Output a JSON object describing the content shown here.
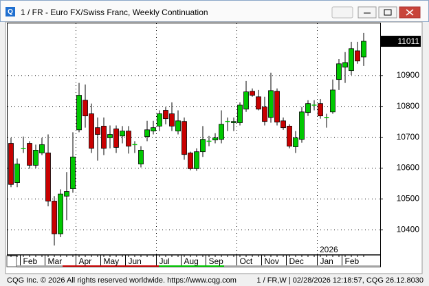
{
  "window": {
    "title": "1 / FR - Euro FX/Swiss Franc, Weekly Continuation"
  },
  "footer": {
    "copyright": "CQG Inc. © 2026 All rights reserved worldwide. https://www.cqg.com",
    "status": "1 / FR,W | 02/28/2026 12:18:57, CQG 26.12.8030"
  },
  "chart_data": {
    "type": "candlestick",
    "categories": [
      null,
      null,
      "Feb",
      null,
      null,
      null,
      "Mar",
      null,
      null,
      null,
      null,
      "Apr",
      null,
      null,
      null,
      "May",
      null,
      null,
      null,
      "Jun",
      null,
      null,
      null,
      null,
      "Jul",
      null,
      null,
      null,
      "Aug",
      null,
      null,
      null,
      "Sep",
      null,
      null,
      null,
      null,
      "Oct",
      null,
      null,
      null,
      "Nov",
      null,
      null,
      null,
      "Dec",
      null,
      null,
      null,
      null,
      "Jan",
      null,
      null,
      null,
      "Feb",
      null,
      null,
      null
    ],
    "series": [
      {
        "open": [
          10680,
          10553,
          10664,
          10680,
          10609,
          10649,
          10649,
          10493,
          10387,
          10509,
          10533,
          10724,
          10820,
          10776,
          10731,
          10736,
          10698,
          10727,
          10704,
          10720,
          10676,
          10613,
          10702,
          10720,
          10736,
          10787,
          10776,
          10720,
          10751,
          10649,
          10598,
          10653,
          10687,
          10691,
          10693,
          10751,
          10747,
          10747,
          10791,
          10849,
          10831,
          10798,
          10764,
          10849,
          10753,
          10736,
          10669,
          10693,
          10780,
          10804,
          10809,
          10764,
          10782,
          10887,
          10927,
          10916,
          10980,
          10960
        ],
        "high": [
          10698,
          10631,
          10702,
          10687,
          10676,
          10698,
          10709,
          10509,
          10531,
          10587,
          10716,
          10876,
          10871,
          10809,
          10764,
          10764,
          10738,
          10738,
          10736,
          10736,
          10687,
          10671,
          10753,
          10753,
          10787,
          10798,
          10813,
          10787,
          10764,
          10653,
          10664,
          10736,
          10704,
          10713,
          10787,
          10764,
          10764,
          10813,
          10882,
          10858,
          10853,
          10831,
          10909,
          10858,
          10764,
          10742,
          10720,
          10798,
          10820,
          10820,
          10824,
          10776,
          10887,
          10953,
          10976,
          11009,
          11009,
          11038
        ],
        "low": [
          10538,
          10538,
          10649,
          10598,
          10600,
          10642,
          10476,
          10349,
          10376,
          10431,
          10520,
          10716,
          10731,
          10649,
          10624,
          10642,
          10664,
          10649,
          10680,
          10647,
          10649,
          10602,
          10687,
          10709,
          10720,
          10742,
          10720,
          10709,
          10627,
          10593,
          10591,
          10636,
          10671,
          10680,
          10680,
          10720,
          10720,
          10738,
          10782,
          10831,
          10787,
          10738,
          10747,
          10738,
          10724,
          10664,
          10649,
          10682,
          10769,
          10787,
          10760,
          10731,
          10776,
          10853,
          10876,
          10902,
          10938,
          10931
        ],
        "close": [
          10547,
          10613,
          10664,
          10609,
          10658,
          10676,
          10493,
          10387,
          10516,
          10524,
          10636,
          10836,
          10769,
          10664,
          10709,
          10664,
          10709,
          10667,
          10720,
          10671,
          10676,
          10658,
          10724,
          10731,
          10776,
          10760,
          10736,
          10753,
          10644,
          10598,
          10653,
          10693,
          10687,
          10698,
          10742,
          10751,
          10751,
          10804,
          10847,
          10836,
          10791,
          10751,
          10851,
          10749,
          10731,
          10671,
          10698,
          10782,
          10809,
          10804,
          10769,
          10764,
          10853,
          10938,
          10942,
          10987,
          10947,
          11011
        ]
      }
    ],
    "up_color": "#00c800",
    "down_color": "#c80000",
    "ylim": [
      10318,
      11069
    ],
    "yticks": [
      10400,
      10500,
      10600,
      10700,
      10800,
      10900
    ],
    "grid": true,
    "annotation": "2026"
  }
}
